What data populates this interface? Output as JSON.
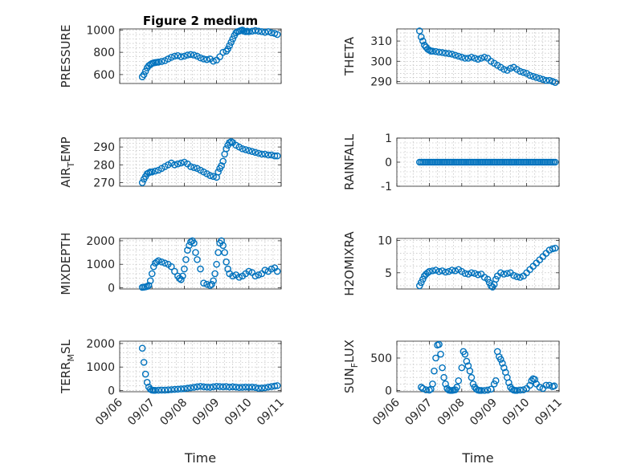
{
  "colors": {
    "marker": "#0072BD",
    "axis": "#262626",
    "grid": "#b0b0b0"
  },
  "chart_data": [
    {
      "type": "scatter",
      "title": "Figure 2 medium",
      "ylabel": {
        "base": "PRESSURE",
        "sub": ""
      },
      "xlabel": "",
      "xlim": [
        "09/06",
        "09/11"
      ],
      "ylim": [
        520,
        1010
      ],
      "yticks": [
        600,
        800,
        1000
      ],
      "xticks": [],
      "grid": true,
      "x": [
        0.7,
        0.75,
        0.8,
        0.85,
        0.9,
        0.95,
        1.0,
        1.05,
        1.1,
        1.15,
        1.2,
        1.3,
        1.4,
        1.5,
        1.6,
        1.7,
        1.8,
        1.9,
        2.0,
        2.1,
        2.2,
        2.3,
        2.4,
        2.5,
        2.6,
        2.7,
        2.8,
        2.9,
        3.0,
        3.1,
        3.2,
        3.3,
        3.35,
        3.4,
        3.45,
        3.5,
        3.55,
        3.6,
        3.65,
        3.7,
        3.75,
        3.8,
        3.85,
        3.9,
        3.95,
        4.0,
        4.1,
        4.2,
        4.3,
        4.4,
        4.5,
        4.6,
        4.7,
        4.8,
        4.88
      ],
      "y": [
        580,
        600,
        630,
        660,
        680,
        690,
        700,
        705,
        708,
        710,
        712,
        718,
        725,
        740,
        755,
        765,
        770,
        760,
        765,
        775,
        780,
        775,
        765,
        750,
        740,
        735,
        740,
        720,
        730,
        760,
        800,
        810,
        830,
        860,
        890,
        920,
        950,
        975,
        985,
        990,
        995,
        1000,
        990,
        985,
        990,
        985,
        990,
        995,
        990,
        985,
        980,
        985,
        975,
        970,
        960
      ]
    },
    {
      "type": "scatter",
      "title": "",
      "ylabel": {
        "base": "THETA",
        "sub": ""
      },
      "xlabel": "",
      "xlim": [
        "09/06",
        "09/11"
      ],
      "ylim": [
        289,
        316
      ],
      "yticks": [
        290,
        300,
        310
      ],
      "xticks": [],
      "grid": true,
      "x": [
        0.7,
        0.75,
        0.8,
        0.85,
        0.9,
        0.95,
        1.0,
        1.05,
        1.1,
        1.2,
        1.3,
        1.4,
        1.5,
        1.6,
        1.7,
        1.8,
        1.9,
        2.0,
        2.1,
        2.2,
        2.3,
        2.4,
        2.5,
        2.6,
        2.7,
        2.8,
        2.9,
        3.0,
        3.1,
        3.2,
        3.3,
        3.4,
        3.5,
        3.6,
        3.7,
        3.8,
        3.9,
        4.0,
        4.1,
        4.2,
        4.3,
        4.4,
        4.5,
        4.6,
        4.7,
        4.8,
        4.88
      ],
      "y": [
        315,
        312,
        310,
        308,
        307,
        306,
        305.5,
        305,
        305,
        304.8,
        304.5,
        304.3,
        304,
        303.8,
        303.5,
        303,
        302.5,
        302,
        301.5,
        301.5,
        302,
        301.5,
        301,
        301.5,
        302,
        301.5,
        300,
        299,
        298,
        297,
        296,
        295.5,
        296.5,
        297,
        296,
        295,
        294.5,
        294,
        293,
        292.5,
        292,
        291.5,
        291,
        290.5,
        290.5,
        290,
        289.5
      ]
    },
    {
      "type": "scatter",
      "title": "",
      "ylabel": {
        "base": "AIR",
        "sub": "T",
        "rest": "EMP"
      },
      "xlabel": "",
      "xlim": [
        "09/06",
        "09/11"
      ],
      "ylim": [
        268,
        295
      ],
      "yticks": [
        270,
        280,
        290
      ],
      "xticks": [],
      "grid": true,
      "x": [
        0.7,
        0.75,
        0.8,
        0.85,
        0.9,
        0.95,
        1.0,
        1.1,
        1.2,
        1.3,
        1.4,
        1.5,
        1.6,
        1.7,
        1.8,
        1.9,
        2.0,
        2.1,
        2.2,
        2.3,
        2.4,
        2.5,
        2.6,
        2.7,
        2.8,
        2.9,
        3.0,
        3.05,
        3.1,
        3.15,
        3.2,
        3.25,
        3.3,
        3.35,
        3.4,
        3.45,
        3.5,
        3.6,
        3.7,
        3.8,
        3.9,
        4.0,
        4.1,
        4.2,
        4.3,
        4.4,
        4.5,
        4.6,
        4.7,
        4.8,
        4.88
      ],
      "y": [
        270,
        272,
        273.5,
        275,
        275.5,
        276,
        276,
        276.5,
        277,
        278,
        279,
        280,
        281,
        280,
        280.5,
        281,
        281.5,
        280.5,
        279,
        278.5,
        278,
        277,
        276,
        275,
        274,
        273.5,
        273,
        276,
        278,
        279.5,
        282,
        286,
        289,
        291,
        292.5,
        293,
        292.5,
        291,
        290,
        289,
        288.5,
        288,
        287.5,
        287,
        286.5,
        286,
        286,
        285.5,
        285.5,
        285,
        285
      ]
    },
    {
      "type": "scatter",
      "title": "",
      "ylabel": {
        "base": "RAINFALL",
        "sub": ""
      },
      "xlabel": "",
      "xlim": [
        "09/06",
        "09/11"
      ],
      "ylim": [
        -1,
        1
      ],
      "yticks": [
        -1,
        0,
        1
      ],
      "xticks": [],
      "grid": true,
      "x_range": [
        0.7,
        4.88
      ],
      "x_count": 80,
      "y_constant": 0
    },
    {
      "type": "scatter",
      "title": "",
      "ylabel": {
        "base": "MIXDEPTH",
        "sub": ""
      },
      "xlabel": "",
      "xlim": [
        "09/06",
        "09/11"
      ],
      "ylim": [
        -50,
        2100
      ],
      "yticks": [
        0,
        1000,
        2000
      ],
      "xticks": [],
      "grid": true,
      "x": [
        0.7,
        0.75,
        0.8,
        0.85,
        0.9,
        0.95,
        1.0,
        1.05,
        1.1,
        1.15,
        1.2,
        1.3,
        1.4,
        1.5,
        1.6,
        1.7,
        1.8,
        1.85,
        1.9,
        1.95,
        2.0,
        2.05,
        2.1,
        2.15,
        2.2,
        2.25,
        2.3,
        2.35,
        2.4,
        2.5,
        2.6,
        2.7,
        2.8,
        2.85,
        2.9,
        2.95,
        3.0,
        3.05,
        3.1,
        3.15,
        3.2,
        3.25,
        3.3,
        3.35,
        3.4,
        3.5,
        3.6,
        3.7,
        3.8,
        3.9,
        4.0,
        4.1,
        4.2,
        4.3,
        4.4,
        4.5,
        4.6,
        4.7,
        4.8,
        4.88
      ],
      "y": [
        20,
        30,
        40,
        60,
        100,
        300,
        600,
        900,
        1050,
        1100,
        1150,
        1100,
        1050,
        1000,
        900,
        700,
        500,
        400,
        350,
        500,
        800,
        1200,
        1600,
        1800,
        1950,
        2000,
        1900,
        1500,
        1200,
        800,
        200,
        150,
        100,
        150,
        300,
        600,
        1000,
        1500,
        1900,
        2000,
        1800,
        1500,
        1100,
        800,
        600,
        500,
        550,
        450,
        500,
        600,
        700,
        650,
        500,
        550,
        600,
        750,
        700,
        800,
        850,
        700
      ]
    },
    {
      "type": "scatter",
      "title": "",
      "ylabel": {
        "base": "H2OMIXRA",
        "sub": ""
      },
      "xlabel": "",
      "xlim": [
        "09/06",
        "09/11"
      ],
      "ylim": [
        2.5,
        10.3
      ],
      "yticks": [
        5,
        10
      ],
      "xticks": [],
      "grid": true,
      "x": [
        0.7,
        0.75,
        0.8,
        0.85,
        0.9,
        0.95,
        1.0,
        1.1,
        1.2,
        1.3,
        1.4,
        1.5,
        1.6,
        1.7,
        1.8,
        1.9,
        2.0,
        2.1,
        2.2,
        2.3,
        2.4,
        2.5,
        2.6,
        2.7,
        2.8,
        2.85,
        2.9,
        2.95,
        3.0,
        3.05,
        3.1,
        3.2,
        3.3,
        3.4,
        3.5,
        3.6,
        3.7,
        3.8,
        3.9,
        4.0,
        4.1,
        4.2,
        4.3,
        4.4,
        4.5,
        4.6,
        4.7,
        4.8,
        4.88
      ],
      "y": [
        3.0,
        3.5,
        4.0,
        4.5,
        4.8,
        5.0,
        5.2,
        5.3,
        5.4,
        5.2,
        5.3,
        5.1,
        5.2,
        5.4,
        5.3,
        5.5,
        5.2,
        4.9,
        4.8,
        5.0,
        4.9,
        4.7,
        4.8,
        4.3,
        4.0,
        3.5,
        3.0,
        2.8,
        3.2,
        4.0,
        4.5,
        5.0,
        4.8,
        4.9,
        5.0,
        4.6,
        4.4,
        4.3,
        4.5,
        5.0,
        5.5,
        6.0,
        6.5,
        7.0,
        7.5,
        8.0,
        8.5,
        8.7,
        8.8
      ]
    },
    {
      "type": "scatter",
      "title": "",
      "ylabel": {
        "base": "TERR",
        "sub": "M",
        "rest": "SL"
      },
      "xlabel": "Time",
      "xlim": [
        "09/06",
        "09/11"
      ],
      "ylim": [
        -50,
        2100
      ],
      "yticks": [
        0,
        1000,
        2000
      ],
      "xticks": [
        "09/06",
        "09/07",
        "09/08",
        "09/09",
        "09/10",
        "09/11"
      ],
      "grid": true,
      "x": [
        0.7,
        0.75,
        0.8,
        0.85,
        0.9,
        0.95,
        1.0,
        1.05,
        1.1,
        1.2,
        1.3,
        1.4,
        1.5,
        1.6,
        1.7,
        1.8,
        1.9,
        2.0,
        2.1,
        2.2,
        2.3,
        2.4,
        2.5,
        2.6,
        2.7,
        2.8,
        2.9,
        3.0,
        3.1,
        3.2,
        3.3,
        3.4,
        3.5,
        3.6,
        3.7,
        3.8,
        3.9,
        4.0,
        4.1,
        4.2,
        4.3,
        4.4,
        4.5,
        4.6,
        4.7,
        4.8,
        4.88
      ],
      "y": [
        1800,
        1200,
        700,
        350,
        150,
        60,
        20,
        10,
        10,
        15,
        20,
        20,
        30,
        40,
        50,
        60,
        70,
        80,
        100,
        120,
        140,
        160,
        180,
        160,
        150,
        140,
        160,
        180,
        170,
        160,
        170,
        150,
        160,
        150,
        130,
        140,
        150,
        140,
        150,
        130,
        100,
        110,
        120,
        150,
        170,
        190,
        210
      ]
    },
    {
      "type": "scatter",
      "title": "",
      "ylabel": {
        "base": "SUN",
        "sub": "F",
        "rest": "LUX"
      },
      "xlabel": "Time",
      "xlim": [
        "09/06",
        "09/11"
      ],
      "ylim": [
        -20,
        760
      ],
      "yticks": [
        0,
        500
      ],
      "xticks": [
        "09/06",
        "09/07",
        "09/08",
        "09/09",
        "09/10",
        "09/11"
      ],
      "grid": true,
      "x": [
        0.75,
        0.8,
        0.9,
        1.0,
        1.05,
        1.1,
        1.15,
        1.2,
        1.25,
        1.3,
        1.35,
        1.4,
        1.45,
        1.5,
        1.55,
        1.6,
        1.65,
        1.7,
        1.75,
        1.8,
        1.85,
        1.9,
        2.0,
        2.05,
        2.1,
        2.15,
        2.2,
        2.25,
        2.3,
        2.35,
        2.4,
        2.45,
        2.5,
        2.55,
        2.6,
        2.7,
        2.8,
        2.9,
        3.0,
        3.05,
        3.1,
        3.15,
        3.2,
        3.25,
        3.3,
        3.35,
        3.4,
        3.45,
        3.5,
        3.55,
        3.6,
        3.65,
        3.7,
        3.8,
        3.9,
        4.0,
        4.1,
        4.15,
        4.2,
        4.25,
        4.3,
        4.4,
        4.5,
        4.6,
        4.7,
        4.8,
        4.85
      ],
      "y": [
        50,
        30,
        10,
        5,
        20,
        100,
        300,
        500,
        700,
        710,
        560,
        350,
        200,
        100,
        30,
        5,
        0,
        0,
        5,
        10,
        50,
        150,
        350,
        600,
        560,
        450,
        380,
        300,
        200,
        100,
        50,
        20,
        5,
        0,
        0,
        0,
        5,
        20,
        100,
        150,
        600,
        520,
        480,
        420,
        350,
        280,
        200,
        120,
        50,
        20,
        5,
        0,
        0,
        5,
        10,
        30,
        80,
        150,
        180,
        170,
        100,
        50,
        30,
        80,
        80,
        60,
        70
      ]
    }
  ]
}
